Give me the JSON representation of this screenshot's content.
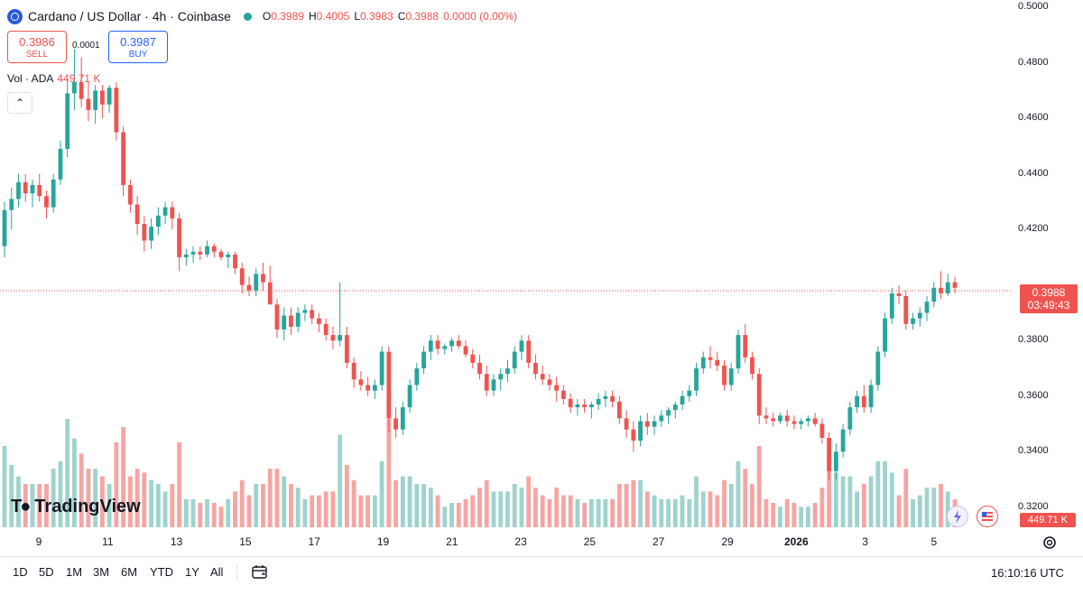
{
  "header": {
    "title": "Cardano / US Dollar · 4h · Coinbase",
    "ohlc": [
      {
        "key": "O",
        "value": "0.3989"
      },
      {
        "key": "H",
        "value": "0.4005"
      },
      {
        "key": "L",
        "value": "0.3983"
      },
      {
        "key": "C",
        "value": "0.3988"
      },
      {
        "key": "",
        "value": "0.0000 (0.00%)"
      }
    ]
  },
  "trade": {
    "sell_price": "0.3986",
    "sell_label": "SELL",
    "spread": "0.0001",
    "buy_price": "0.3987",
    "buy_label": "BUY"
  },
  "volume": {
    "label": "Vol · ADA",
    "value": "449.71 K"
  },
  "price_axis": [
    "0.5000",
    "0.4800",
    "0.4600",
    "0.4400",
    "0.4200",
    "0.3800",
    "0.3600",
    "0.3400",
    "0.3200"
  ],
  "current_price": {
    "price": "0.3988",
    "countdown": "03:49:43"
  },
  "volume_badge": "449.71 K",
  "time_axis": [
    {
      "label": "9",
      "bold": false
    },
    {
      "label": "11",
      "bold": false
    },
    {
      "label": "13",
      "bold": false
    },
    {
      "label": "15",
      "bold": false
    },
    {
      "label": "17",
      "bold": false
    },
    {
      "label": "19",
      "bold": false
    },
    {
      "label": "21",
      "bold": false
    },
    {
      "label": "23",
      "bold": false
    },
    {
      "label": "25",
      "bold": false
    },
    {
      "label": "27",
      "bold": false
    },
    {
      "label": "29",
      "bold": false
    },
    {
      "label": "2026",
      "bold": true
    },
    {
      "label": "3",
      "bold": false
    },
    {
      "label": "5",
      "bold": false
    }
  ],
  "logo_text": "TradingView",
  "ranges": [
    "1D",
    "5D",
    "1M",
    "3M",
    "6M",
    "YTD",
    "1Y",
    "All"
  ],
  "time_utc": "16:10:16 UTC",
  "colors": {
    "up": "#26a69a",
    "down": "#ef5350",
    "up_vol": "#9fd3cd",
    "down_vol": "#f5a5a3",
    "accent": "#2962ff"
  },
  "icons": [
    "cardano-coin-icon",
    "live-dot-icon",
    "chevron-up-icon",
    "calendar-range-icon",
    "gear-icon",
    "flash-icon",
    "flag-icon"
  ],
  "chart_data": {
    "type": "candlestick",
    "interval": "4h",
    "ylim": [
      0.318,
      0.5
    ],
    "grid": false,
    "candles_ohlc": [
      [
        0.414,
        0.43,
        0.41,
        0.427
      ],
      [
        0.427,
        0.435,
        0.42,
        0.431
      ],
      [
        0.431,
        0.44,
        0.428,
        0.437
      ],
      [
        0.437,
        0.44,
        0.43,
        0.433
      ],
      [
        0.433,
        0.438,
        0.428,
        0.436
      ],
      [
        0.436,
        0.44,
        0.43,
        0.432
      ],
      [
        0.432,
        0.434,
        0.424,
        0.428
      ],
      [
        0.428,
        0.44,
        0.426,
        0.438
      ],
      [
        0.438,
        0.452,
        0.436,
        0.449
      ],
      [
        0.449,
        0.474,
        0.446,
        0.469
      ],
      [
        0.469,
        0.485,
        0.463,
        0.473
      ],
      [
        0.473,
        0.482,
        0.464,
        0.467
      ],
      [
        0.467,
        0.473,
        0.459,
        0.463
      ],
      [
        0.463,
        0.472,
        0.458,
        0.47
      ],
      [
        0.47,
        0.472,
        0.46,
        0.465
      ],
      [
        0.465,
        0.472,
        0.462,
        0.471
      ],
      [
        0.471,
        0.473,
        0.452,
        0.455
      ],
      [
        0.455,
        0.457,
        0.432,
        0.436
      ],
      [
        0.436,
        0.438,
        0.426,
        0.429
      ],
      [
        0.429,
        0.432,
        0.418,
        0.422
      ],
      [
        0.422,
        0.425,
        0.412,
        0.416
      ],
      [
        0.416,
        0.424,
        0.413,
        0.421
      ],
      [
        0.421,
        0.428,
        0.418,
        0.425
      ],
      [
        0.425,
        0.43,
        0.422,
        0.428
      ],
      [
        0.428,
        0.43,
        0.42,
        0.424
      ],
      [
        0.424,
        0.426,
        0.405,
        0.41
      ],
      [
        0.41,
        0.413,
        0.407,
        0.411
      ],
      [
        0.411,
        0.414,
        0.408,
        0.412
      ],
      [
        0.412,
        0.414,
        0.409,
        0.411
      ],
      [
        0.411,
        0.416,
        0.41,
        0.414
      ],
      [
        0.414,
        0.415,
        0.41,
        0.412
      ],
      [
        0.412,
        0.413,
        0.409,
        0.41
      ],
      [
        0.41,
        0.412,
        0.406,
        0.411
      ],
      [
        0.411,
        0.412,
        0.404,
        0.406
      ],
      [
        0.406,
        0.408,
        0.397,
        0.4
      ],
      [
        0.4,
        0.403,
        0.396,
        0.398
      ],
      [
        0.398,
        0.406,
        0.396,
        0.404
      ],
      [
        0.404,
        0.408,
        0.398,
        0.401
      ],
      [
        0.401,
        0.407,
        0.393,
        0.393
      ],
      [
        0.393,
        0.395,
        0.381,
        0.384
      ],
      [
        0.384,
        0.392,
        0.38,
        0.389
      ],
      [
        0.389,
        0.392,
        0.382,
        0.385
      ],
      [
        0.385,
        0.392,
        0.383,
        0.39
      ],
      [
        0.39,
        0.393,
        0.387,
        0.391
      ],
      [
        0.391,
        0.393,
        0.386,
        0.388
      ],
      [
        0.388,
        0.39,
        0.383,
        0.386
      ],
      [
        0.386,
        0.388,
        0.38,
        0.382
      ],
      [
        0.382,
        0.385,
        0.377,
        0.38
      ],
      [
        0.38,
        0.401,
        0.378,
        0.382
      ],
      [
        0.382,
        0.385,
        0.37,
        0.372
      ],
      [
        0.372,
        0.374,
        0.363,
        0.366
      ],
      [
        0.366,
        0.369,
        0.362,
        0.364
      ],
      [
        0.364,
        0.367,
        0.36,
        0.362
      ],
      [
        0.362,
        0.366,
        0.359,
        0.364
      ],
      [
        0.364,
        0.378,
        0.362,
        0.376
      ],
      [
        0.376,
        0.378,
        0.347,
        0.352
      ],
      [
        0.352,
        0.356,
        0.345,
        0.348
      ],
      [
        0.348,
        0.358,
        0.346,
        0.356
      ],
      [
        0.356,
        0.366,
        0.354,
        0.364
      ],
      [
        0.364,
        0.372,
        0.362,
        0.37
      ],
      [
        0.37,
        0.378,
        0.368,
        0.376
      ],
      [
        0.376,
        0.382,
        0.373,
        0.38
      ],
      [
        0.38,
        0.382,
        0.375,
        0.377
      ],
      [
        0.377,
        0.379,
        0.375,
        0.378
      ],
      [
        0.378,
        0.381,
        0.376,
        0.38
      ],
      [
        0.38,
        0.382,
        0.377,
        0.378
      ],
      [
        0.378,
        0.38,
        0.374,
        0.375
      ],
      [
        0.375,
        0.377,
        0.37,
        0.372
      ],
      [
        0.372,
        0.375,
        0.366,
        0.368
      ],
      [
        0.368,
        0.371,
        0.36,
        0.362
      ],
      [
        0.362,
        0.368,
        0.36,
        0.366
      ],
      [
        0.366,
        0.37,
        0.362,
        0.368
      ],
      [
        0.368,
        0.373,
        0.365,
        0.37
      ],
      [
        0.37,
        0.378,
        0.368,
        0.376
      ],
      [
        0.376,
        0.382,
        0.373,
        0.38
      ],
      [
        0.38,
        0.382,
        0.37,
        0.372
      ],
      [
        0.372,
        0.375,
        0.366,
        0.368
      ],
      [
        0.368,
        0.371,
        0.364,
        0.366
      ],
      [
        0.366,
        0.368,
        0.362,
        0.364
      ],
      [
        0.364,
        0.367,
        0.358,
        0.362
      ],
      [
        0.362,
        0.364,
        0.357,
        0.359
      ],
      [
        0.359,
        0.361,
        0.354,
        0.356
      ],
      [
        0.356,
        0.359,
        0.353,
        0.357
      ],
      [
        0.357,
        0.359,
        0.354,
        0.356
      ],
      [
        0.356,
        0.358,
        0.352,
        0.357
      ],
      [
        0.357,
        0.361,
        0.355,
        0.359
      ],
      [
        0.359,
        0.362,
        0.356,
        0.36
      ],
      [
        0.36,
        0.362,
        0.356,
        0.358
      ],
      [
        0.358,
        0.36,
        0.35,
        0.352
      ],
      [
        0.352,
        0.355,
        0.345,
        0.348
      ],
      [
        0.348,
        0.351,
        0.34,
        0.344
      ],
      [
        0.344,
        0.353,
        0.342,
        0.351
      ],
      [
        0.351,
        0.354,
        0.346,
        0.349
      ],
      [
        0.349,
        0.353,
        0.346,
        0.351
      ],
      [
        0.351,
        0.355,
        0.349,
        0.353
      ],
      [
        0.353,
        0.356,
        0.35,
        0.355
      ],
      [
        0.355,
        0.358,
        0.352,
        0.357
      ],
      [
        0.357,
        0.362,
        0.355,
        0.36
      ],
      [
        0.36,
        0.364,
        0.358,
        0.362
      ],
      [
        0.362,
        0.372,
        0.36,
        0.37
      ],
      [
        0.37,
        0.376,
        0.368,
        0.374
      ],
      [
        0.374,
        0.378,
        0.37,
        0.373
      ],
      [
        0.373,
        0.376,
        0.369,
        0.371
      ],
      [
        0.371,
        0.373,
        0.362,
        0.364
      ],
      [
        0.364,
        0.372,
        0.362,
        0.37
      ],
      [
        0.37,
        0.384,
        0.368,
        0.382
      ],
      [
        0.382,
        0.386,
        0.372,
        0.374
      ],
      [
        0.374,
        0.376,
        0.366,
        0.368
      ],
      [
        0.368,
        0.37,
        0.35,
        0.353
      ],
      [
        0.353,
        0.356,
        0.35,
        0.352
      ],
      [
        0.352,
        0.354,
        0.349,
        0.351
      ],
      [
        0.351,
        0.354,
        0.35,
        0.353
      ],
      [
        0.353,
        0.355,
        0.349,
        0.351
      ],
      [
        0.351,
        0.353,
        0.348,
        0.35
      ],
      [
        0.35,
        0.352,
        0.348,
        0.351
      ],
      [
        0.351,
        0.353,
        0.349,
        0.352
      ],
      [
        0.352,
        0.354,
        0.349,
        0.35
      ],
      [
        0.35,
        0.352,
        0.343,
        0.345
      ],
      [
        0.345,
        0.347,
        0.33,
        0.333
      ],
      [
        0.333,
        0.343,
        0.33,
        0.34
      ],
      [
        0.34,
        0.35,
        0.338,
        0.348
      ],
      [
        0.348,
        0.358,
        0.346,
        0.356
      ],
      [
        0.356,
        0.362,
        0.354,
        0.36
      ],
      [
        0.36,
        0.364,
        0.354,
        0.356
      ],
      [
        0.356,
        0.366,
        0.354,
        0.364
      ],
      [
        0.364,
        0.378,
        0.362,
        0.376
      ],
      [
        0.376,
        0.39,
        0.374,
        0.388
      ],
      [
        0.388,
        0.399,
        0.386,
        0.397
      ],
      [
        0.397,
        0.4,
        0.393,
        0.396
      ],
      [
        0.396,
        0.398,
        0.384,
        0.386
      ],
      [
        0.386,
        0.39,
        0.384,
        0.388
      ],
      [
        0.388,
        0.392,
        0.385,
        0.39
      ],
      [
        0.39,
        0.396,
        0.387,
        0.394
      ],
      [
        0.394,
        0.401,
        0.392,
        0.399
      ],
      [
        0.399,
        0.405,
        0.395,
        0.397
      ],
      [
        0.397,
        0.404,
        0.396,
        0.401
      ],
      [
        0.401,
        0.403,
        0.397,
        0.399
      ]
    ]
  }
}
